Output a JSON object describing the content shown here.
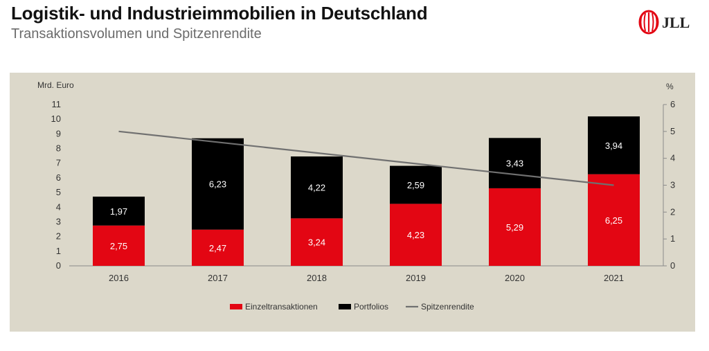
{
  "header": {
    "title": "Logistik- und Industrieimmobilien in Deutschland",
    "subtitle": "Transaktionsvolumen und Spitzenrendite"
  },
  "logo": {
    "text": "JLL",
    "color": "#e30613"
  },
  "colors": {
    "einzel": "#e30613",
    "portfolios": "#000000",
    "rendite": "#707070",
    "background": "#dcd8ca"
  },
  "chart_data": {
    "type": "bar",
    "stacked": true,
    "title": "",
    "ylabel": "Mrd. Euro",
    "y2label": "%",
    "ylim": [
      0,
      11
    ],
    "y2lim": [
      0,
      6
    ],
    "yticks": [
      "0",
      "1",
      "2",
      "3",
      "4",
      "5",
      "6",
      "7",
      "8",
      "9",
      "10",
      "11"
    ],
    "y2ticks": [
      "0",
      "1",
      "2",
      "3",
      "4",
      "5",
      "6"
    ],
    "categories": [
      "2016",
      "2017",
      "2018",
      "2019",
      "2020",
      "2021"
    ],
    "series": [
      {
        "name": "Einzeltransaktionen",
        "values": [
          2.75,
          2.47,
          3.24,
          4.23,
          5.29,
          6.25
        ],
        "labels": [
          "2,75",
          "2,47",
          "3,24",
          "4,23",
          "5,29",
          "6,25"
        ]
      },
      {
        "name": "Portfolios",
        "values": [
          1.97,
          6.23,
          4.22,
          2.59,
          3.43,
          3.94
        ],
        "labels": [
          "1,97",
          "6,23",
          "4,22",
          "2,59",
          "3,43",
          "3,94"
        ]
      }
    ],
    "line": {
      "name": "Spitzenrendite",
      "axis": "right",
      "start": 5.0,
      "end": 3.0
    },
    "legend": {
      "position": "bottom",
      "items": [
        "Einzeltransaktionen",
        "Portfolios",
        "Spitzenrendite"
      ]
    },
    "grid": false
  }
}
